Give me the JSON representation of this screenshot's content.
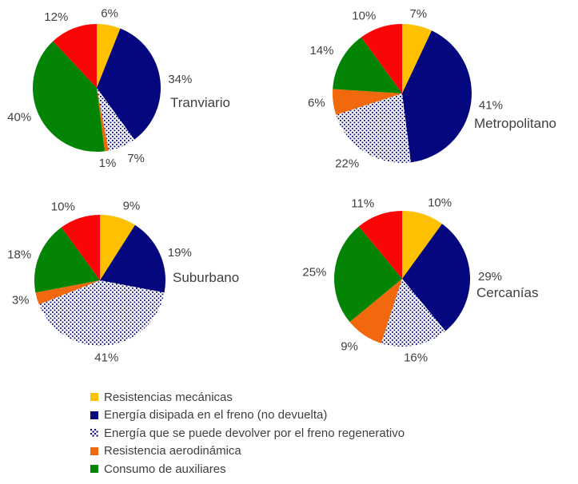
{
  "figure": {
    "background": "#FFFFFF",
    "text_color": "#3F3F3F"
  },
  "colors": {
    "yellow": "#FFC000",
    "navy": "#04077E",
    "dotted": "pattern:navy-dots-on-white",
    "dotted_dot_color": "#04077E",
    "dotted_bg_color": "#FFFFFF",
    "orange": "#F2690D",
    "green": "#048404",
    "red": "#FB0606"
  },
  "legend": {
    "position": "bottom-left",
    "items": [
      {
        "color": "yellow",
        "label": "Resistencias mecánicas"
      },
      {
        "color": "navy",
        "label": "Energía disipada en el freno (no devuelta)"
      },
      {
        "color": "dotted",
        "label": "Energía que se puede devolver por el freno regenerativo"
      },
      {
        "color": "orange",
        "label": "Resistencia aerodinámica"
      },
      {
        "color": "green",
        "label": "Consumo de auxiliares"
      }
    ]
  },
  "chart_data": [
    {
      "type": "pie",
      "id": "tranviario",
      "title": "Tranviario",
      "center": [
        121,
        110
      ],
      "radius": 80,
      "title_pos": [
        213,
        134
      ],
      "start_angle_deg": 0,
      "direction": "clockwise",
      "labels": "percent-outside",
      "segments": [
        {
          "color": "yellow",
          "value": 6
        },
        {
          "color": "navy",
          "value": 34
        },
        {
          "color": "dotted",
          "value": 7
        },
        {
          "color": "orange",
          "value": 1
        },
        {
          "color": "green",
          "value": 40
        },
        {
          "color": "red",
          "value": 12
        }
      ]
    },
    {
      "type": "pie",
      "id": "metropolitano",
      "title": "Metropolitano",
      "center": [
        503,
        117
      ],
      "radius": 87,
      "title_pos": [
        593,
        160
      ],
      "start_angle_deg": 0,
      "direction": "clockwise",
      "labels": "percent-outside",
      "segments": [
        {
          "color": "yellow",
          "value": 7
        },
        {
          "color": "navy",
          "value": 41
        },
        {
          "color": "dotted",
          "value": 22
        },
        {
          "color": "orange",
          "value": 6
        },
        {
          "color": "green",
          "value": 14
        },
        {
          "color": "red",
          "value": 10
        }
      ]
    },
    {
      "type": "pie",
      "id": "suburbano",
      "title": "Suburbano",
      "center": [
        125,
        351
      ],
      "radius": 82,
      "title_pos": [
        216,
        353
      ],
      "start_angle_deg": 0,
      "direction": "clockwise",
      "labels": "percent-outside",
      "segments": [
        {
          "color": "yellow",
          "value": 9
        },
        {
          "color": "navy",
          "value": 19
        },
        {
          "color": "dotted",
          "value": 41
        },
        {
          "color": "orange",
          "value": 3
        },
        {
          "color": "green",
          "value": 18
        },
        {
          "color": "red",
          "value": 10
        }
      ]
    },
    {
      "type": "pie",
      "id": "cercanias",
      "title": "Cercanías",
      "center": [
        503,
        349
      ],
      "radius": 85,
      "title_pos": [
        596,
        372
      ],
      "start_angle_deg": 0,
      "direction": "clockwise",
      "labels": "percent-outside",
      "segments": [
        {
          "color": "yellow",
          "value": 10
        },
        {
          "color": "navy",
          "value": 29
        },
        {
          "color": "dotted",
          "value": 16
        },
        {
          "color": "orange",
          "value": 9
        },
        {
          "color": "green",
          "value": 25
        },
        {
          "color": "red",
          "value": 11
        }
      ]
    }
  ]
}
